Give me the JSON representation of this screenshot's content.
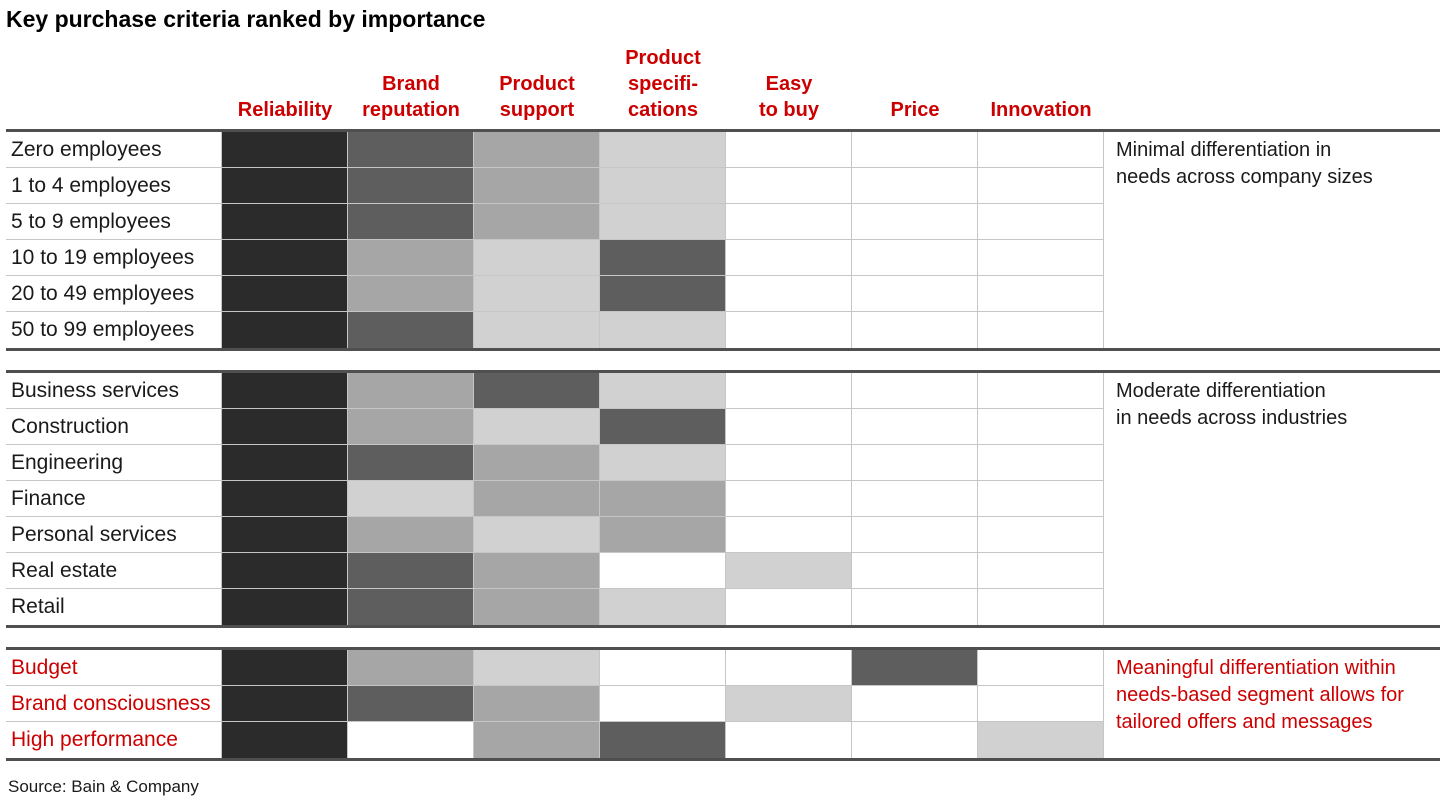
{
  "title": "Key purchase criteria ranked by importance",
  "source": "Source: Bain & Company",
  "header_labels": [
    "Reliability",
    "Brand\nreputation",
    "Product\nsupport",
    "Product\nspecifi-\ncations",
    "Easy\nto buy",
    "Price",
    "Innovation"
  ],
  "colors": {
    "accent_red": "#cc0000",
    "scale": [
      "#ffffff",
      "#d1d1d1",
      "#a6a6a6",
      "#5e5e5e",
      "#2b2b2b"
    ],
    "grid_line": "#c6c6c6",
    "group_border": "#4f4f4f"
  },
  "chart_data": {
    "type": "heatmap",
    "title": "Key purchase criteria ranked by importance",
    "columns": [
      "Reliability",
      "Brand reputation",
      "Product support",
      "Product specifications",
      "Easy to buy",
      "Price",
      "Innovation"
    ],
    "value_encoding": "cell shading rank: 4 = darkest (most important), 3 = dark gray, 2 = medium gray, 1 = light gray, 0 = white (blank)",
    "groups": [
      {
        "name": "company-sizes",
        "annotation": "Minimal differentiation in\nneeds across company sizes",
        "label_style": "black",
        "rows": [
          {
            "label": "Zero employees",
            "values": [
              4,
              3,
              2,
              1,
              0,
              0,
              0
            ]
          },
          {
            "label": "1 to 4 employees",
            "values": [
              4,
              3,
              2,
              1,
              0,
              0,
              0
            ]
          },
          {
            "label": "5 to 9 employees",
            "values": [
              4,
              3,
              2,
              1,
              0,
              0,
              0
            ]
          },
          {
            "label": "10 to 19 employees",
            "values": [
              4,
              2,
              1,
              3,
              0,
              0,
              0
            ]
          },
          {
            "label": "20 to 49 employees",
            "values": [
              4,
              2,
              1,
              3,
              0,
              0,
              0
            ]
          },
          {
            "label": "50 to 99 employees",
            "values": [
              4,
              3,
              1,
              1,
              0,
              0,
              0
            ]
          }
        ]
      },
      {
        "name": "industries",
        "annotation": "Moderate differentiation\nin needs across industries",
        "label_style": "black",
        "rows": [
          {
            "label": "Business services",
            "values": [
              4,
              2,
              3,
              1,
              0,
              0,
              0
            ]
          },
          {
            "label": "Construction",
            "values": [
              4,
              2,
              1,
              3,
              0,
              0,
              0
            ]
          },
          {
            "label": "Engineering",
            "values": [
              4,
              3,
              2,
              1,
              0,
              0,
              0
            ]
          },
          {
            "label": "Finance",
            "values": [
              4,
              1,
              2,
              2,
              0,
              0,
              0
            ]
          },
          {
            "label": "Personal services",
            "values": [
              4,
              2,
              1,
              2,
              0,
              0,
              0
            ]
          },
          {
            "label": "Real estate",
            "values": [
              4,
              3,
              2,
              0,
              1,
              0,
              0
            ]
          },
          {
            "label": "Retail",
            "values": [
              4,
              3,
              2,
              1,
              0,
              0,
              0
            ]
          }
        ]
      },
      {
        "name": "needs-based-segments",
        "annotation": "Meaningful differentiation within\nneeds-based segment allows for\ntailored offers and messages",
        "label_style": "red",
        "rows": [
          {
            "label": "Budget",
            "values": [
              4,
              2,
              1,
              0,
              0,
              3,
              0
            ]
          },
          {
            "label": "Brand consciousness",
            "values": [
              4,
              3,
              2,
              0,
              1,
              0,
              0
            ]
          },
          {
            "label": "High performance",
            "values": [
              4,
              0,
              2,
              3,
              0,
              0,
              1
            ]
          }
        ]
      }
    ]
  }
}
